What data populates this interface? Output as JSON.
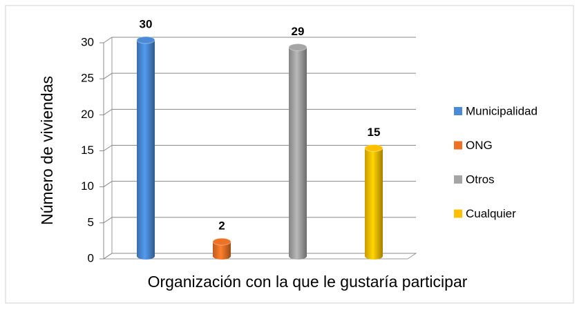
{
  "chart_data": {
    "type": "bar",
    "xlabel": "Organización con la que le gustaría participar",
    "ylabel": "Número de viviendas",
    "series": [
      {
        "name": "Municipalidad",
        "color": "#4a8ad6",
        "values": [
          30
        ]
      },
      {
        "name": "ONG",
        "color": "#ed7226",
        "values": [
          2
        ]
      },
      {
        "name": "Otros",
        "color": "#a5a5a5",
        "values": [
          29
        ]
      },
      {
        "name": "Cualquier",
        "color": "#ffc000",
        "values": [
          15
        ]
      }
    ],
    "ylim": [
      0,
      30
    ],
    "yticks": [
      0,
      5,
      10,
      15,
      20,
      25,
      30
    ],
    "grid": true,
    "legend": "right"
  }
}
